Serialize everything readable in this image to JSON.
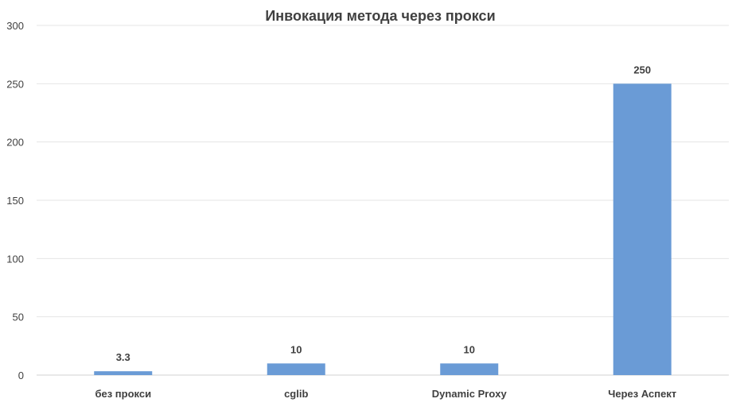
{
  "chart_data": {
    "type": "bar",
    "title": "Инвокация метода через прокси",
    "categories": [
      "без прокси",
      "cglib",
      "Dynamic Proxy",
      "Через Аспект"
    ],
    "values": [
      3.3,
      10,
      10,
      250
    ],
    "data_labels": [
      "3.3",
      "10",
      "10",
      "250"
    ],
    "ylim": [
      0,
      300
    ],
    "yticks": [
      "0",
      "50",
      "100",
      "150",
      "200",
      "250",
      "300"
    ],
    "xlabel": "",
    "ylabel": "",
    "grid": true,
    "legend": "none",
    "colors": {
      "bar": "#6a9bd6",
      "grid": "#e4e4e4",
      "axis": "#d0d0d0",
      "text": "#404040"
    }
  }
}
